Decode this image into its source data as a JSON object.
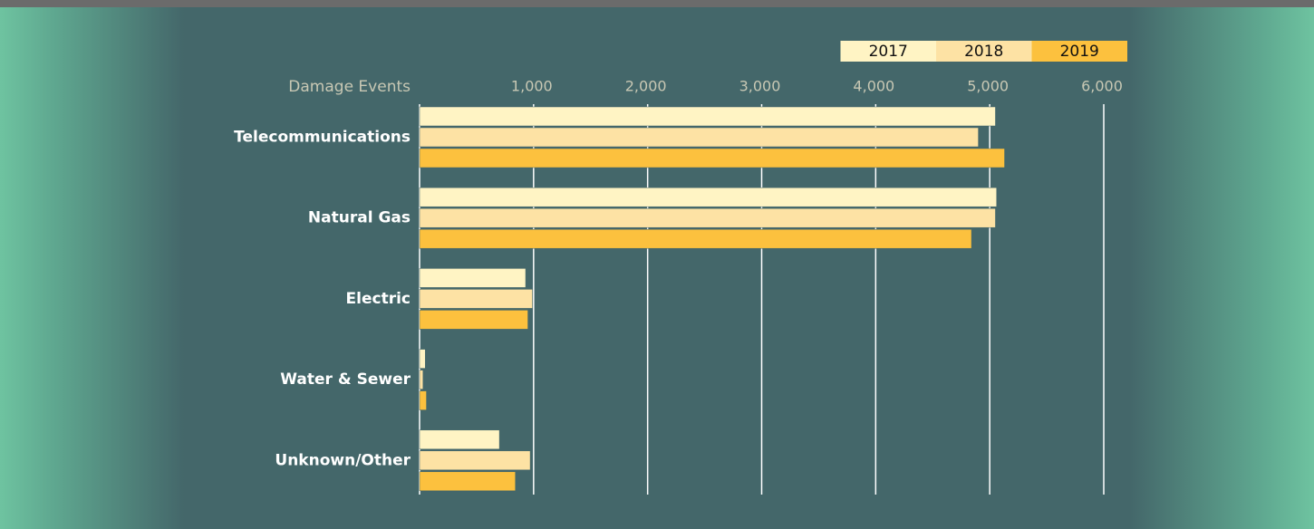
{
  "chart_data": {
    "type": "hbar",
    "xlabel": "Damage Events",
    "categories": [
      "Telecommunications",
      "Natural Gas",
      "Electric",
      "Water & Sewer",
      "Unknown/Other"
    ],
    "series": [
      {
        "name": "2017",
        "color": "#fff4c4",
        "values": [
          5050,
          5060,
          930,
          50,
          700
        ]
      },
      {
        "name": "2018",
        "color": "#fde2a4",
        "values": [
          4900,
          5050,
          990,
          30,
          970
        ]
      },
      {
        "name": "2019",
        "color": "#fcc13e",
        "values": [
          5130,
          4840,
          950,
          60,
          840
        ]
      }
    ],
    "xlim": [
      0,
      6000
    ],
    "xticks": [
      {
        "value": 1000,
        "label": "1,000"
      },
      {
        "value": 2000,
        "label": "2,000"
      },
      {
        "value": 3000,
        "label": "3,000"
      },
      {
        "value": 4000,
        "label": "4,000"
      },
      {
        "value": 5000,
        "label": "5,000"
      },
      {
        "value": 6000,
        "label": "6,000"
      }
    ],
    "grid": true,
    "legend": "top-right"
  }
}
